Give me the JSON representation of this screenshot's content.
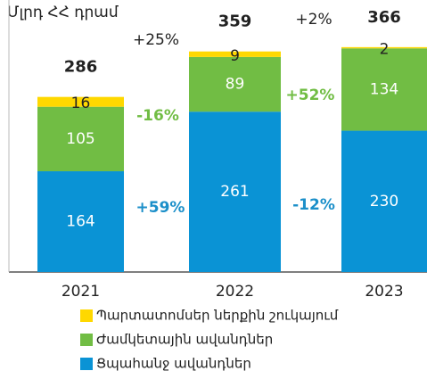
{
  "chart_data": {
    "type": "stacked_bar",
    "title": "Մլրդ ՀՀ դրամ",
    "categories": [
      "2021",
      "2022",
      "2023"
    ],
    "series": [
      {
        "name": "Ցպահանջ ավանդներ",
        "color": "#0a93d5",
        "values": [
          164,
          261,
          230
        ]
      },
      {
        "name": "Ժամկետային ավանդներ",
        "color": "#71bd44",
        "values": [
          105,
          89,
          134
        ]
      },
      {
        "name": "Պարտատոմսեր ներքին շուկայում",
        "color": "#ffd800",
        "values": [
          16,
          9,
          2
        ]
      }
    ],
    "totals": [
      286,
      359,
      366
    ],
    "annotations": [
      {
        "text": "+25%",
        "color": "#222222"
      },
      {
        "text": "+2%",
        "color": "#222222"
      },
      {
        "text": "-16%",
        "color": "#71bd44"
      },
      {
        "text": "+52%",
        "color": "#71bd44"
      },
      {
        "text": "+59%",
        "color": "#1b8fc9"
      },
      {
        "text": "-12%",
        "color": "#1b8fc9"
      }
    ],
    "ylim": [
      0,
      360
    ]
  }
}
